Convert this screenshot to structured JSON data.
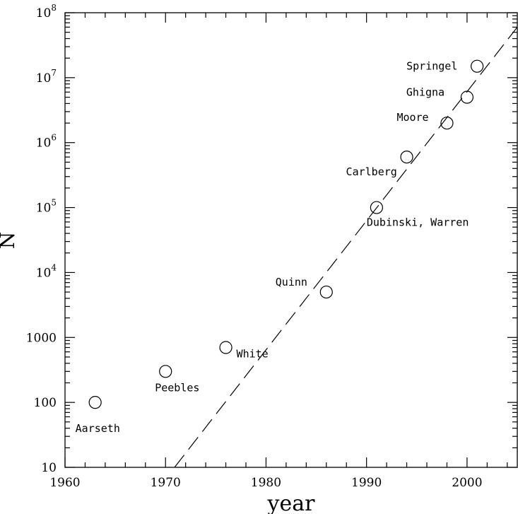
{
  "chart_data": {
    "type": "scatter",
    "title": "",
    "xlabel": "year",
    "ylabel": "N",
    "xlim": [
      1960,
      2005
    ],
    "ylim": [
      10,
      100000000
    ],
    "yscale": "log",
    "x_ticks": [
      1960,
      1970,
      1980,
      1990,
      2000
    ],
    "x_tick_labels": [
      "1960",
      "1970",
      "1980",
      "1990",
      "2000"
    ],
    "y_ticks": [
      10,
      100,
      1000,
      10000,
      100000,
      1000000,
      10000000,
      100000000
    ],
    "y_tick_labels": [
      {
        "base": "10",
        "exp": ""
      },
      {
        "base": "100",
        "exp": ""
      },
      {
        "base": "1000",
        "exp": ""
      },
      {
        "base": "10",
        "exp": "4"
      },
      {
        "base": "10",
        "exp": "5"
      },
      {
        "base": "10",
        "exp": "6"
      },
      {
        "base": "10",
        "exp": "7"
      },
      {
        "base": "10",
        "exp": "8"
      }
    ],
    "grid": false,
    "points": [
      {
        "label": "Aarseth",
        "x": 1963,
        "y": 100
      },
      {
        "label": "Peebles",
        "x": 1970,
        "y": 300
      },
      {
        "label": "White",
        "x": 1976,
        "y": 700
      },
      {
        "label": "Quinn",
        "x": 1986,
        "y": 5000
      },
      {
        "label": "Dubinski, Warren",
        "x": 1991,
        "y": 100000
      },
      {
        "label": "Carlberg",
        "x": 1994,
        "y": 600000
      },
      {
        "label": "Moore",
        "x": 1998,
        "y": 2000000
      },
      {
        "label": "Ghigna",
        "x": 2000,
        "y": 5000000
      },
      {
        "label": "Springel",
        "x": 2001,
        "y": 15000000
      }
    ],
    "fit_line": {
      "style": "dashed",
      "x": [
        1970.9,
        2005
      ],
      "y": [
        10,
        60000000
      ]
    }
  }
}
